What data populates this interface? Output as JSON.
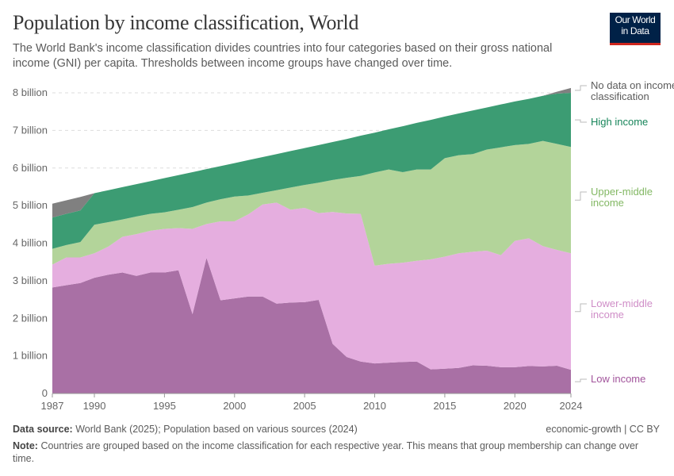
{
  "header": {
    "title": "Population by income classification, World",
    "subtitle": "The World Bank's income classification divides countries into four categories based on their gross national income (GNI) per capita. Thresholds between income groups have changed over time.",
    "logo_line1": "Our World",
    "logo_line2": "in Data"
  },
  "footer": {
    "source_label": "Data source:",
    "source_text": "World Bank (2025); Population based on various sources (2024)",
    "license": "economic-growth | CC BY",
    "note_label": "Note:",
    "note_text": "Countries are grouped based on the income classification for each respective year. This means that group membership can change over time."
  },
  "chart_data": {
    "type": "area",
    "stacked": true,
    "title": "Population by income classification, World",
    "xlim": [
      1987,
      2024
    ],
    "ylim": [
      0,
      8000000000
    ],
    "grid": "horizontal-dashed",
    "legend": "right-inline",
    "x_ticks": [
      "1987",
      "1990",
      "1995",
      "2000",
      "2005",
      "2010",
      "2015",
      "2020",
      "2024"
    ],
    "y_ticks": [
      {
        "v": 0,
        "label": "0"
      },
      {
        "v": 1,
        "label": "1 billion"
      },
      {
        "v": 2,
        "label": "2 billion"
      },
      {
        "v": 3,
        "label": "3 billion"
      },
      {
        "v": 4,
        "label": "4 billion"
      },
      {
        "v": 5,
        "label": "5 billion"
      },
      {
        "v": 6,
        "label": "6 billion"
      },
      {
        "v": 7,
        "label": "7 billion"
      },
      {
        "v": 8,
        "label": "8 billion"
      }
    ],
    "unit": "billion",
    "x": [
      1987,
      1988,
      1989,
      1990,
      1991,
      1992,
      1993,
      1994,
      1995,
      1996,
      1997,
      1998,
      1999,
      2000,
      2001,
      2002,
      2003,
      2004,
      2005,
      2006,
      2007,
      2008,
      2009,
      2010,
      2011,
      2012,
      2013,
      2014,
      2015,
      2016,
      2017,
      2018,
      2019,
      2020,
      2021,
      2022,
      2023,
      2024
    ],
    "series": [
      {
        "name": "Low income",
        "label_lines": [
          "Low income"
        ],
        "color": "#a970a5",
        "label_color": "#a2559c",
        "values": [
          2.82,
          2.88,
          2.94,
          3.08,
          3.16,
          3.22,
          3.13,
          3.22,
          3.22,
          3.28,
          2.11,
          3.61,
          2.48,
          2.53,
          2.58,
          2.58,
          2.39,
          2.42,
          2.43,
          2.49,
          1.32,
          0.97,
          0.85,
          0.8,
          0.82,
          0.84,
          0.85,
          0.64,
          0.66,
          0.68,
          0.75,
          0.74,
          0.7,
          0.7,
          0.73,
          0.72,
          0.74,
          0.63
        ]
      },
      {
        "name": "Lower-middle income",
        "label_lines": [
          "Lower-middle",
          "income"
        ],
        "color": "#e5aedf",
        "label_color": "#cf8dc7",
        "values": [
          0.61,
          0.74,
          0.68,
          0.65,
          0.75,
          0.95,
          1.11,
          1.11,
          1.16,
          1.12,
          2.27,
          0.9,
          2.1,
          2.05,
          2.19,
          2.45,
          2.69,
          2.47,
          2.51,
          2.31,
          3.51,
          3.82,
          3.93,
          2.6,
          2.63,
          2.64,
          2.68,
          2.93,
          2.98,
          3.05,
          3.02,
          3.06,
          2.98,
          3.36,
          3.4,
          3.2,
          3.08,
          3.1
        ]
      },
      {
        "name": "Upper-middle income",
        "label_lines": [
          "Upper-middle",
          "income"
        ],
        "color": "#b3d49a",
        "label_color": "#83b864",
        "values": [
          0.42,
          0.33,
          0.41,
          0.76,
          0.65,
          0.46,
          0.47,
          0.45,
          0.44,
          0.49,
          0.58,
          0.57,
          0.59,
          0.66,
          0.5,
          0.31,
          0.33,
          0.59,
          0.61,
          0.81,
          0.85,
          0.95,
          1.01,
          2.48,
          2.51,
          2.41,
          2.43,
          2.39,
          2.62,
          2.61,
          2.6,
          2.69,
          2.87,
          2.55,
          2.51,
          2.8,
          2.82,
          2.83
        ]
      },
      {
        "name": "High income",
        "label_lines": [
          "High income"
        ],
        "color": "#3c9c73",
        "label_color": "#17855a",
        "values": [
          0.83,
          0.83,
          0.84,
          0.84,
          0.85,
          0.86,
          0.86,
          0.87,
          0.91,
          0.92,
          0.93,
          0.89,
          0.88,
          0.89,
          0.94,
          0.95,
          0.96,
          0.97,
          0.98,
          1.0,
          1.01,
          1.03,
          1.07,
          1.06,
          1.07,
          1.22,
          1.24,
          1.32,
          1.11,
          1.11,
          1.16,
          1.12,
          1.14,
          1.16,
          1.2,
          1.2,
          1.34,
          1.44
        ]
      },
      {
        "name": "No data on income classification",
        "label_lines": [
          "No data on income",
          "classification"
        ],
        "color": "#808080",
        "label_color": "#5b5b5b",
        "values": [
          0.37,
          0.36,
          0.36,
          0,
          0,
          0,
          0,
          0,
          0,
          0,
          0,
          0,
          0,
          0,
          0,
          0,
          0,
          0,
          0,
          0,
          0,
          0,
          0,
          0,
          0,
          0,
          0,
          0,
          0,
          0,
          0,
          0,
          0,
          0,
          0,
          0,
          0.05,
          0.13
        ]
      }
    ]
  }
}
